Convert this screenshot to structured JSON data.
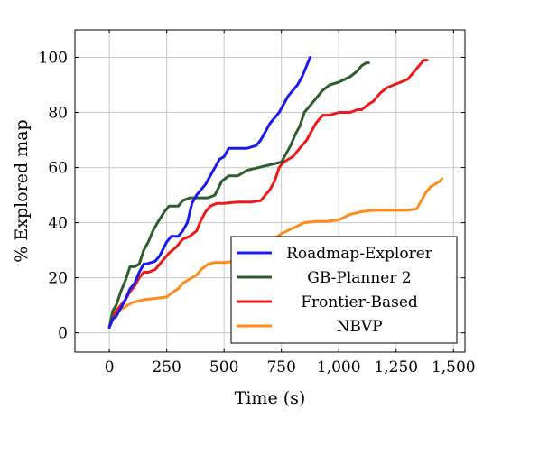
{
  "chart_data": {
    "type": "line",
    "xlabel": "Time (s)",
    "ylabel": "% Explored map",
    "xlim": [
      -150,
      1550
    ],
    "ylim": [
      -7,
      110
    ],
    "xticks": [
      0,
      250,
      500,
      750,
      1000,
      1250,
      1500
    ],
    "xtick_labels": [
      "0",
      "250",
      "500",
      "750",
      "1,000",
      "1,250",
      "1,500"
    ],
    "yticks": [
      0,
      20,
      40,
      60,
      80,
      100
    ],
    "ytick_labels": [
      "0",
      "20",
      "40",
      "60",
      "80",
      "100"
    ],
    "grid": true,
    "legend_position": "bottom-right",
    "series": [
      {
        "name": "Roadmap-Explorer",
        "color": "#1a1aee",
        "x": [
          0,
          15,
          30,
          50,
          70,
          90,
          110,
          130,
          150,
          160,
          200,
          220,
          250,
          270,
          300,
          320,
          340,
          360,
          380,
          400,
          420,
          440,
          460,
          480,
          500,
          520,
          540,
          600,
          640,
          660,
          680,
          700,
          720,
          740,
          760,
          780,
          800,
          820,
          840,
          860,
          875
        ],
        "y": [
          2,
          5,
          6,
          9,
          12,
          16,
          18,
          22,
          25,
          25,
          26,
          28,
          33,
          35,
          35,
          37,
          40,
          47,
          50,
          52,
          54,
          57,
          60,
          63,
          64,
          67,
          67,
          67,
          68,
          70,
          73,
          76,
          78,
          80,
          83,
          86,
          88,
          90,
          93,
          97,
          100
        ]
      },
      {
        "name": "GB-Planner 2",
        "color": "#2d5e2d",
        "x": [
          0,
          15,
          30,
          50,
          70,
          90,
          110,
          130,
          150,
          170,
          190,
          210,
          240,
          260,
          280,
          300,
          320,
          350,
          400,
          430,
          460,
          490,
          520,
          560,
          600,
          650,
          700,
          750,
          770,
          790,
          810,
          830,
          850,
          870,
          900,
          930,
          960,
          1000,
          1050,
          1080,
          1100,
          1120,
          1130
        ],
        "y": [
          2,
          8,
          10,
          15,
          19,
          24,
          24,
          25,
          30,
          33,
          37,
          40,
          44,
          46,
          46,
          46,
          48,
          49,
          49,
          49,
          50,
          55,
          57,
          57,
          59,
          60,
          61,
          62,
          65,
          68,
          72,
          75,
          80,
          82,
          85,
          88,
          90,
          91,
          93,
          95,
          97,
          98,
          98
        ]
      },
      {
        "name": "Frontier-Based",
        "color": "#ee1a1a",
        "x": [
          0,
          15,
          30,
          50,
          70,
          90,
          110,
          130,
          150,
          170,
          200,
          230,
          260,
          290,
          320,
          350,
          380,
          400,
          420,
          440,
          470,
          500,
          560,
          620,
          660,
          680,
          700,
          720,
          740,
          760,
          780,
          800,
          830,
          860,
          880,
          900,
          930,
          960,
          1000,
          1050,
          1080,
          1100,
          1130,
          1150,
          1180,
          1210,
          1240,
          1270,
          1300,
          1330,
          1350,
          1370,
          1385
        ],
        "y": [
          2,
          5,
          8,
          10,
          12,
          15,
          17,
          20,
          22,
          22,
          23,
          26,
          29,
          31,
          34,
          35,
          37,
          41,
          44,
          46,
          47,
          47,
          47.5,
          47.5,
          48,
          50,
          52,
          55,
          60,
          62,
          63,
          64,
          67,
          70,
          73,
          76,
          79,
          79,
          80,
          80,
          81,
          81,
          83,
          84,
          87,
          89,
          90,
          91,
          92,
          95,
          97,
          99,
          99
        ]
      },
      {
        "name": "NBVP",
        "color": "#ff8c1a",
        "x": [
          0,
          15,
          30,
          60,
          100,
          150,
          200,
          250,
          280,
          300,
          320,
          340,
          360,
          380,
          400,
          430,
          460,
          500,
          550,
          600,
          650,
          700,
          750,
          800,
          850,
          900,
          950,
          1000,
          1050,
          1100,
          1150,
          1200,
          1250,
          1300,
          1340,
          1360,
          1380,
          1400,
          1420,
          1440,
          1450
        ],
        "y": [
          2,
          6,
          8,
          9,
          11,
          12,
          12.5,
          13,
          15,
          16,
          18,
          19,
          20,
          21,
          23,
          25,
          25.5,
          25.5,
          26,
          27,
          29,
          33,
          36,
          38,
          40,
          40.5,
          40.5,
          41,
          43,
          44,
          44.5,
          44.5,
          44.5,
          44.5,
          45,
          48,
          51,
          53,
          54,
          55,
          56
        ]
      }
    ]
  }
}
